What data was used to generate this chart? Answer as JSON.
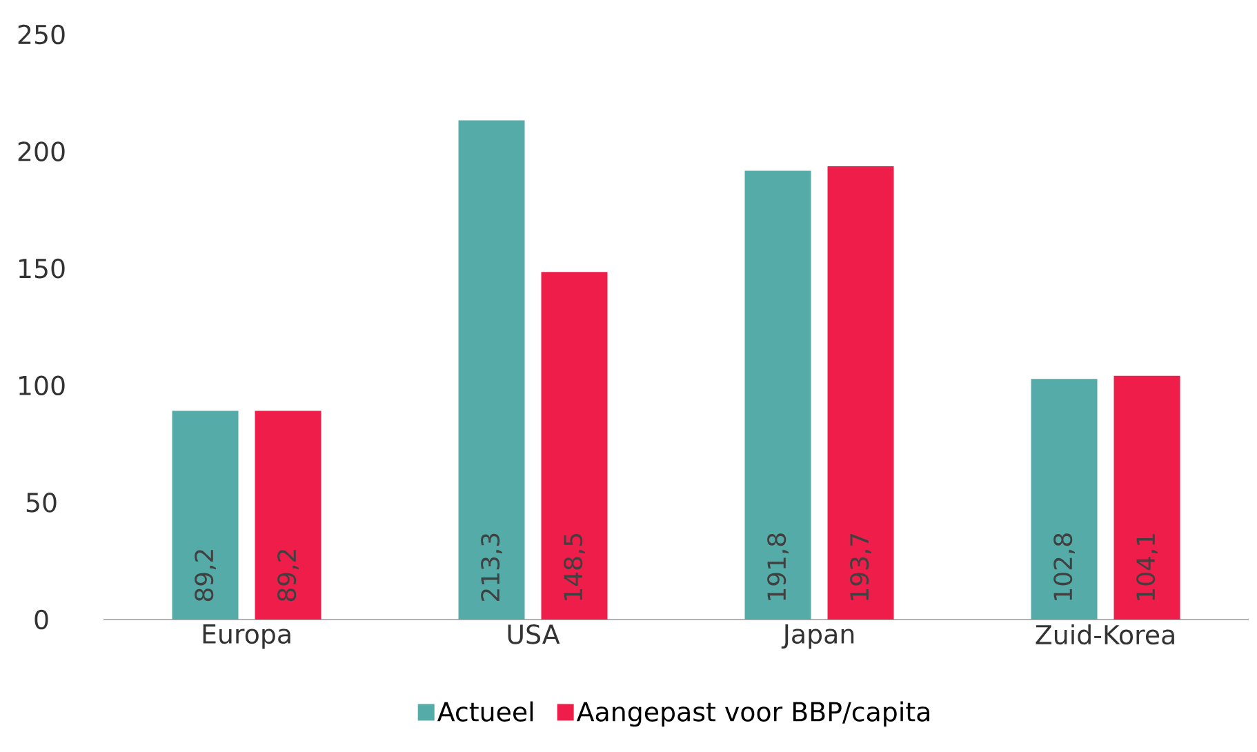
{
  "chart_data": {
    "type": "bar",
    "categories": [
      "Europa",
      "USA",
      "Japan",
      "Zuid-Korea"
    ],
    "series": [
      {
        "name": "Actueel",
        "color": "#55aba8",
        "values": [
          89.2,
          213.3,
          191.8,
          102.8
        ],
        "value_labels": [
          "89,2",
          "213,3",
          "191,8",
          "102,8"
        ]
      },
      {
        "name": "Aangepast voor BBP/capita",
        "color": "#ee1d4a",
        "values": [
          89.2,
          148.5,
          193.7,
          104.1
        ],
        "value_labels": [
          "89,2",
          "148,5",
          "193,7",
          "104,1"
        ]
      }
    ],
    "ylim": [
      0,
      250
    ],
    "yticks": [
      0,
      50,
      100,
      150,
      200,
      250
    ],
    "legend": "bottom"
  }
}
